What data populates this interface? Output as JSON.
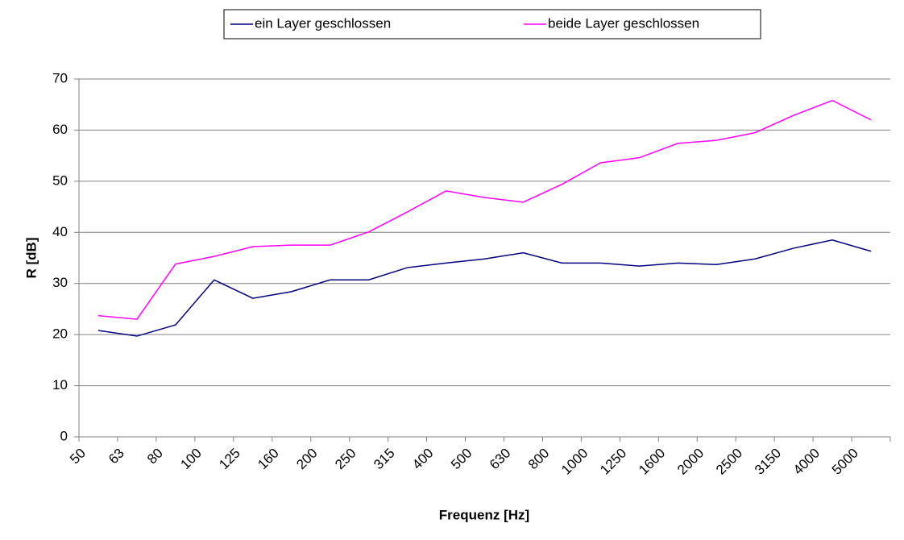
{
  "chart_data": {
    "type": "line",
    "xlabel": "Frequenz [Hz]",
    "ylabel": "R [dB]",
    "categories": [
      "50",
      "63",
      "80",
      "100",
      "125",
      "160",
      "200",
      "250",
      "315",
      "400",
      "500",
      "630",
      "800",
      "1000",
      "1250",
      "1600",
      "2000",
      "2500",
      "3150",
      "4000",
      "5000"
    ],
    "series": [
      {
        "name": "ein Layer geschlossen",
        "color": "#000080",
        "values": [
          20.8,
          19.7,
          21.9,
          30.7,
          27.1,
          28.4,
          30.7,
          30.7,
          33.1,
          34.0,
          34.8,
          36.0,
          34.0,
          34.0,
          33.4,
          34.0,
          33.7,
          34.8,
          36.9,
          38.5,
          36.3
        ]
      },
      {
        "name": "beide Layer geschlossen",
        "color": "#ff00ff",
        "values": [
          23.7,
          23.0,
          33.8,
          35.3,
          37.2,
          37.5,
          37.5,
          40.1,
          44.0,
          48.1,
          46.8,
          45.9,
          49.4,
          53.6,
          54.6,
          57.4,
          58.0,
          59.5,
          62.9,
          65.8,
          62.0
        ]
      }
    ],
    "ylim": [
      0,
      70
    ],
    "yticks": [
      0,
      10,
      20,
      30,
      40,
      50,
      60,
      70
    ],
    "grid": true,
    "legend": "top"
  }
}
